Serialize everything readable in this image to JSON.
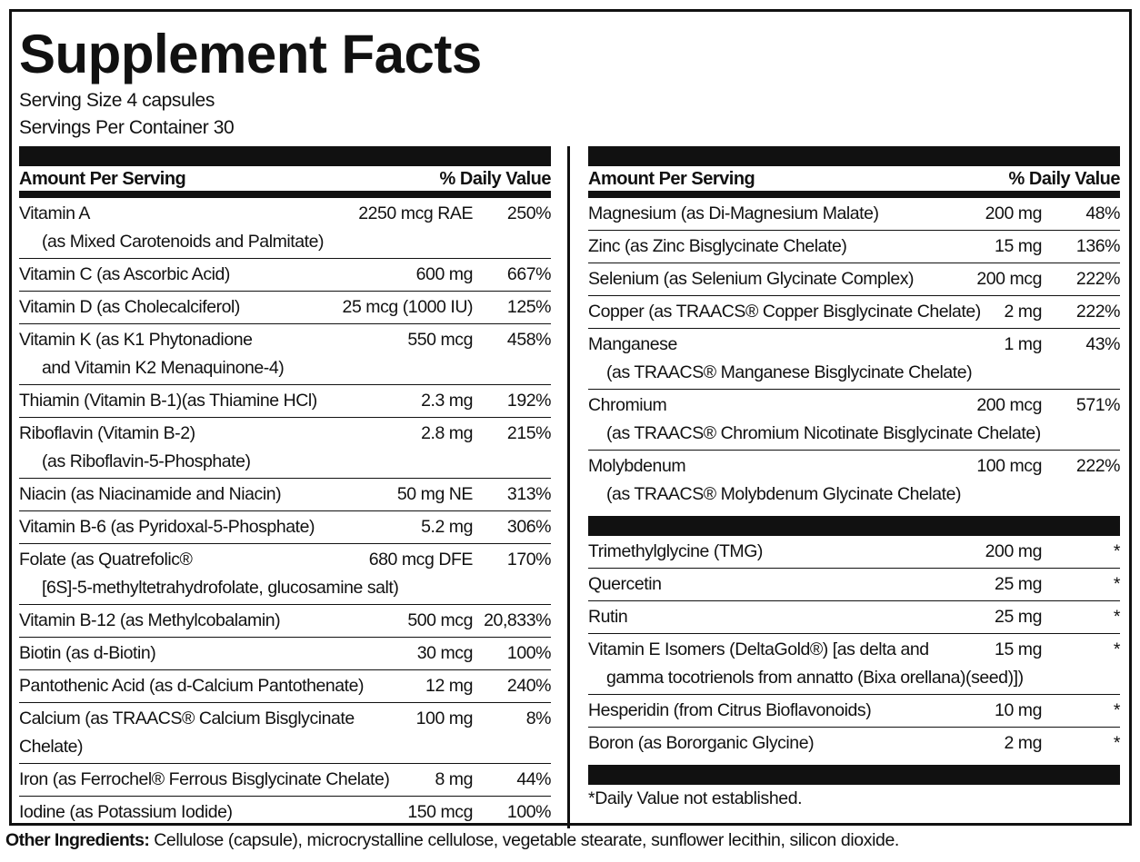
{
  "title": "Supplement Facts",
  "serving_size": "Serving Size 4 capsules",
  "servings_per_container": "Servings Per Container 30",
  "left": {
    "header": {
      "amount": "Amount Per Serving",
      "dv": "% Daily Value"
    },
    "rows": [
      {
        "name": "Vitamin A",
        "sub": "(as Mixed Carotenoids and Palmitate)",
        "amount": "2250 mcg RAE",
        "dv": "250%"
      },
      {
        "name": "Vitamin C (as Ascorbic Acid)",
        "amount": "600 mg",
        "dv": "667%"
      },
      {
        "name": "Vitamin D (as Cholecalciferol)",
        "amount": "25 mcg (1000 IU)",
        "dv": "125%"
      },
      {
        "name": "Vitamin K (as K1 Phytonadione",
        "sub": "and Vitamin K2 Menaquinone-4)",
        "amount": "550 mcg",
        "dv": "458%"
      },
      {
        "name": "Thiamin (Vitamin B-1)(as Thiamine HCl)",
        "amount": "2.3 mg",
        "dv": "192%"
      },
      {
        "name": "Riboflavin (Vitamin B-2)",
        "sub": "(as Riboflavin-5-Phosphate)",
        "amount": "2.8 mg",
        "dv": "215%"
      },
      {
        "name": "Niacin (as Niacinamide and Niacin)",
        "amount": "50 mg NE",
        "dv": "313%"
      },
      {
        "name": "Vitamin B-6 (as Pyridoxal-5-Phosphate)",
        "amount": "5.2 mg",
        "dv": "306%"
      },
      {
        "name": "Folate (as Quatrefolic®",
        "sub": "[6S]-5-methyltetrahydrofolate, glucosamine salt)",
        "amount": "680 mcg DFE",
        "dv": "170%"
      },
      {
        "name": "Vitamin B-12 (as Methylcobalamin)",
        "amount": "500 mcg",
        "dv": "20,833%"
      },
      {
        "name": "Biotin (as d-Biotin)",
        "amount": "30 mcg",
        "dv": "100%"
      },
      {
        "name": "Pantothenic Acid (as d-Calcium Pantothenate)",
        "amount": "12 mg",
        "dv": "240%"
      },
      {
        "name": "Calcium (as TRAACS® Calcium Bisglycinate Chelate)",
        "amount": "100 mg",
        "dv": "8%"
      },
      {
        "name": "Iron (as Ferrochel® Ferrous Bisglycinate Chelate)",
        "amount": "8 mg",
        "dv": "44%"
      },
      {
        "name": "Iodine (as Potassium Iodide)",
        "amount": "150 mcg",
        "dv": "100%"
      }
    ]
  },
  "right": {
    "header": {
      "amount": "Amount Per Serving",
      "dv": "% Daily Value"
    },
    "sections": [
      {
        "rows": [
          {
            "name": "Magnesium (as Di-Magnesium Malate)",
            "amount": "200 mg",
            "dv": "48%"
          },
          {
            "name": "Zinc (as Zinc Bisglycinate Chelate)",
            "amount": "15 mg",
            "dv": "136%"
          },
          {
            "name": "Selenium (as Selenium Glycinate Complex)",
            "amount": "200 mcg",
            "dv": "222%"
          },
          {
            "name": "Copper (as TRAACS® Copper Bisglycinate Chelate)",
            "amount": "2 mg",
            "dv": "222%"
          },
          {
            "name": "Manganese",
            "sub": "(as TRAACS® Manganese Bisglycinate Chelate)",
            "amount": "1 mg",
            "dv": "43%"
          },
          {
            "name": "Chromium",
            "sub": "(as TRAACS® Chromium Nicotinate Bisglycinate Chelate)",
            "amount": "200 mcg",
            "dv": "571%"
          },
          {
            "name": "Molybdenum",
            "sub": "(as TRAACS® Molybdenum Glycinate Chelate)",
            "amount": "100 mcg",
            "dv": "222%"
          }
        ]
      },
      {
        "rows": [
          {
            "name": "Trimethylglycine  (TMG)",
            "amount": "200 mg",
            "dv": "*"
          },
          {
            "name": "Quercetin",
            "amount": "25 mg",
            "dv": "*"
          },
          {
            "name": "Rutin",
            "amount": "25 mg",
            "dv": "*"
          },
          {
            "name": "Vitamin E Isomers (DeltaGold®) [as delta and",
            "sub": "gamma tocotrienols from annatto (Bixa orellana)(seed)])",
            "amount": "15 mg",
            "dv": "*"
          },
          {
            "name": "Hesperidin (from Citrus Bioflavonoids)",
            "amount": "10 mg",
            "dv": "*"
          },
          {
            "name": "Boron (as Bororganic Glycine)",
            "amount": "2 mg",
            "dv": "*"
          }
        ]
      }
    ],
    "footnote": "*Daily Value not established."
  },
  "other_ingredients": {
    "label": "Other Ingredients:",
    "text": "Cellulose (capsule), microcrystalline cellulose, vegetable stearate, sunflower lecithin, silicon dioxide."
  }
}
